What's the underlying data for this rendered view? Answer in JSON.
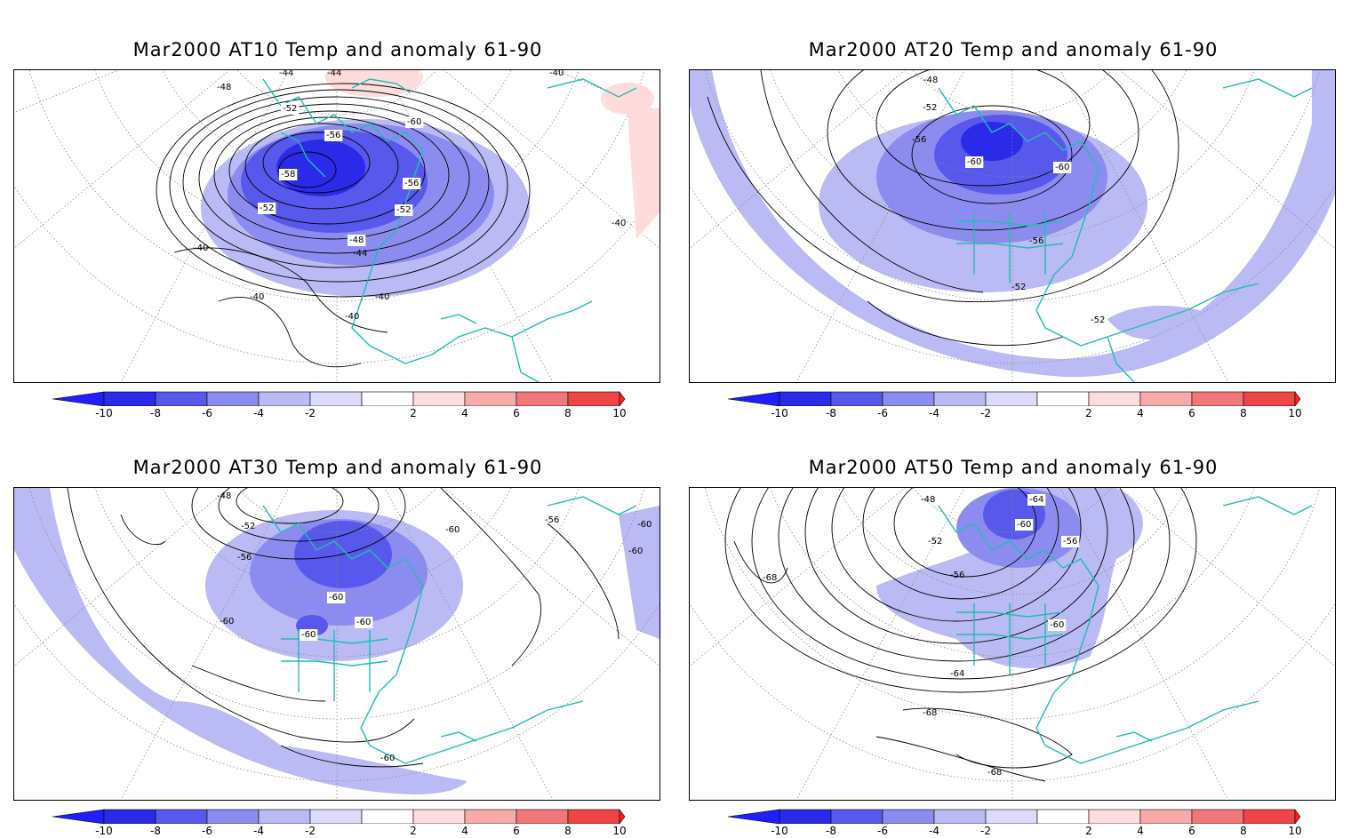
{
  "colors": {
    "coastline": "#1ebeb4",
    "contour": "#000000",
    "grid": "#8c8c8c",
    "neg_shades": [
      "#2a2ae8",
      "#5858ec",
      "#8c8cf0",
      "#babaf4",
      "#dcdcfa"
    ],
    "pos_shades": [
      "#ffdcdc",
      "#f8aaaa",
      "#f27878",
      "#ee4646",
      "#ff1e1e"
    ]
  },
  "colorbar": {
    "labels": [
      "-10",
      "-8",
      "-6",
      "-4",
      "-2",
      "2",
      "4",
      "6",
      "8",
      "10"
    ]
  },
  "panels": [
    {
      "title": "Mar2000 AT10 Temp and anomaly 61-90",
      "contour_labels": [
        "-44",
        "-44",
        "-40",
        "-48",
        "-52",
        "-60",
        "-56",
        "-58",
        "-56",
        "-52",
        "-52",
        "-48",
        "-44",
        "-40",
        "-40",
        "-40",
        "-40",
        "-40"
      ]
    },
    {
      "title": "Mar2000 AT20 Temp and anomaly 61-90",
      "contour_labels": [
        "-48",
        "-52",
        "-56",
        "-60",
        "-60",
        "-56",
        "-52",
        "-52"
      ]
    },
    {
      "title": "Mar2000 AT30 Temp and anomaly 61-90",
      "contour_labels": [
        "-48",
        "-52",
        "-56",
        "-60",
        "-56",
        "-60",
        "-60",
        "-60",
        "-60",
        "-60",
        "-60",
        "-60"
      ]
    },
    {
      "title": "Mar2000 AT50 Temp and anomaly 61-90",
      "contour_labels": [
        "-48",
        "-64",
        "-60",
        "-52",
        "-56",
        "-56",
        "-68",
        "-60",
        "-64",
        "-68",
        "-68"
      ]
    }
  ]
}
